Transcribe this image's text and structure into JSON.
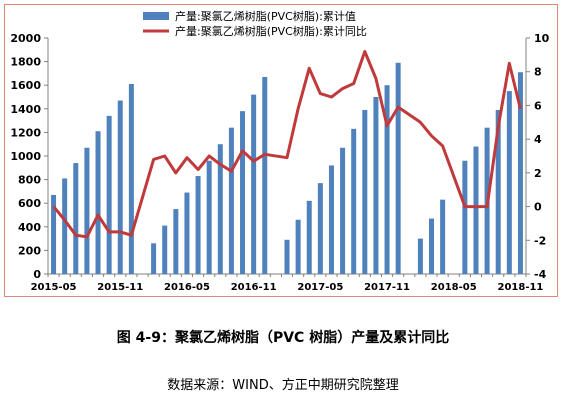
{
  "chart_data": {
    "type": "bar",
    "legend_position": "top",
    "grid": false,
    "x_tick_labels": [
      "2015-05",
      "2015-11",
      "2016-05",
      "2016-11",
      "2017-05",
      "2017-11",
      "2018-05",
      "2018-11"
    ],
    "y_left": {
      "range": [
        0,
        2000
      ],
      "ticks": [
        0,
        200,
        400,
        600,
        800,
        1000,
        1200,
        1400,
        1600,
        1800,
        2000
      ]
    },
    "y_right": {
      "range": [
        -4,
        10
      ],
      "ticks": [
        -4,
        -2,
        0,
        2,
        4,
        6,
        8,
        10
      ]
    },
    "series": [
      {
        "name": "产量:聚氯乙烯树脂(PVC树脂):累计值",
        "type": "bar",
        "axis": "left",
        "color": "#4f81bd",
        "points": [
          {
            "x": "2015-05",
            "y": 670
          },
          {
            "x": "2015-06",
            "y": 810
          },
          {
            "x": "2015-07",
            "y": 940
          },
          {
            "x": "2015-08",
            "y": 1070
          },
          {
            "x": "2015-09",
            "y": 1210
          },
          {
            "x": "2015-10",
            "y": 1340
          },
          {
            "x": "2015-11",
            "y": 1470
          },
          {
            "x": "2015-12",
            "y": 1610
          },
          {
            "x": "2016-02",
            "y": 260
          },
          {
            "x": "2016-03",
            "y": 410
          },
          {
            "x": "2016-04",
            "y": 550
          },
          {
            "x": "2016-05",
            "y": 690
          },
          {
            "x": "2016-06",
            "y": 830
          },
          {
            "x": "2016-07",
            "y": 960
          },
          {
            "x": "2016-08",
            "y": 1100
          },
          {
            "x": "2016-09",
            "y": 1240
          },
          {
            "x": "2016-10",
            "y": 1380
          },
          {
            "x": "2016-11",
            "y": 1520
          },
          {
            "x": "2016-12",
            "y": 1670
          },
          {
            "x": "2017-02",
            "y": 290
          },
          {
            "x": "2017-03",
            "y": 460
          },
          {
            "x": "2017-04",
            "y": 620
          },
          {
            "x": "2017-05",
            "y": 770
          },
          {
            "x": "2017-06",
            "y": 920
          },
          {
            "x": "2017-07",
            "y": 1070
          },
          {
            "x": "2017-08",
            "y": 1230
          },
          {
            "x": "2017-09",
            "y": 1390
          },
          {
            "x": "2017-10",
            "y": 1500
          },
          {
            "x": "2017-11",
            "y": 1600
          },
          {
            "x": "2017-12",
            "y": 1790
          },
          {
            "x": "2018-02",
            "y": 300
          },
          {
            "x": "2018-03",
            "y": 470
          },
          {
            "x": "2018-04",
            "y": 630
          },
          {
            "x": "2018-06",
            "y": 960
          },
          {
            "x": "2018-07",
            "y": 1080
          },
          {
            "x": "2018-08",
            "y": 1240
          },
          {
            "x": "2018-09",
            "y": 1390
          },
          {
            "x": "2018-10",
            "y": 1550
          },
          {
            "x": "2018-11",
            "y": 1710
          }
        ]
      },
      {
        "name": "产量:聚氯乙烯树脂(PVC树脂):累计同比",
        "type": "line",
        "axis": "right",
        "color": "#c0393b",
        "points": [
          {
            "x": "2015-05",
            "y": 0.0
          },
          {
            "x": "2015-06",
            "y": -0.8
          },
          {
            "x": "2015-07",
            "y": -1.7
          },
          {
            "x": "2015-08",
            "y": -1.8
          },
          {
            "x": "2015-09",
            "y": -0.5
          },
          {
            "x": "2015-10",
            "y": -1.5
          },
          {
            "x": "2015-11",
            "y": -1.5
          },
          {
            "x": "2015-12",
            "y": -1.7
          },
          {
            "x": "2016-02",
            "y": 2.8
          },
          {
            "x": "2016-03",
            "y": 3.0
          },
          {
            "x": "2016-04",
            "y": 2.0
          },
          {
            "x": "2016-05",
            "y": 2.9
          },
          {
            "x": "2016-06",
            "y": 2.2
          },
          {
            "x": "2016-07",
            "y": 3.0
          },
          {
            "x": "2016-08",
            "y": 2.5
          },
          {
            "x": "2016-09",
            "y": 2.1
          },
          {
            "x": "2016-10",
            "y": 3.3
          },
          {
            "x": "2016-11",
            "y": 2.7
          },
          {
            "x": "2016-12",
            "y": 3.1
          },
          {
            "x": "2017-02",
            "y": 2.9
          },
          {
            "x": "2017-03",
            "y": 5.8
          },
          {
            "x": "2017-04",
            "y": 8.2
          },
          {
            "x": "2017-05",
            "y": 6.7
          },
          {
            "x": "2017-06",
            "y": 6.5
          },
          {
            "x": "2017-07",
            "y": 7.0
          },
          {
            "x": "2017-08",
            "y": 7.3
          },
          {
            "x": "2017-09",
            "y": 9.2
          },
          {
            "x": "2017-10",
            "y": 7.6
          },
          {
            "x": "2017-11",
            "y": 4.8
          },
          {
            "x": "2017-12",
            "y": 5.9
          },
          {
            "x": "2018-02",
            "y": 5.0
          },
          {
            "x": "2018-03",
            "y": 4.2
          },
          {
            "x": "2018-04",
            "y": 3.6
          },
          {
            "x": "2018-06",
            "y": 0.0
          },
          {
            "x": "2018-07",
            "y": 0.0
          },
          {
            "x": "2018-08",
            "y": 0.0
          },
          {
            "x": "2018-09",
            "y": 4.7
          },
          {
            "x": "2018-10",
            "y": 8.5
          },
          {
            "x": "2018-11",
            "y": 5.8
          }
        ]
      }
    ]
  },
  "caption": {
    "figure_title": "图 4-9：聚氯乙烯树脂（PVC 树脂）产量及累计同比",
    "source": "数据来源：WIND、方正中期研究院整理"
  }
}
